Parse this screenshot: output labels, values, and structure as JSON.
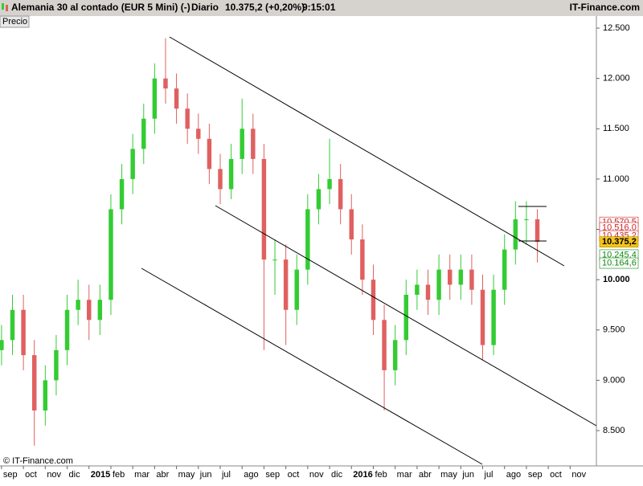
{
  "header": {
    "title": "Alemania 30 al contado (EUR 5 Mini) (-)",
    "period": "Diario",
    "price": "10.375,2 (+0,20%)",
    "time": "9:15:01",
    "brand": "IT-Finance.com"
  },
  "panel_label": "Precio",
  "footer": "© IT-Finance.com",
  "chart_data": {
    "type": "candlestick",
    "x": [
      0,
      0.5,
      1,
      1.5,
      2,
      2.5,
      3,
      3.5,
      4,
      4.5,
      5,
      5.5,
      6,
      6.5,
      7,
      7.5,
      8,
      8.5,
      9,
      9.5,
      10,
      10.5,
      11,
      11.5,
      12,
      12.5,
      13,
      13.5,
      14,
      14.5,
      15,
      15.5,
      16,
      16.5,
      17,
      17.5,
      18,
      18.5,
      19,
      19.5,
      20,
      20.5,
      21,
      21.5,
      22,
      22.5,
      23,
      23.5,
      24,
      24.5
    ],
    "open": [
      9300,
      9400,
      9700,
      9250,
      8700,
      9000,
      9300,
      9700,
      9800,
      9600,
      9800,
      10700,
      11000,
      11300,
      11600,
      12000,
      11900,
      11700,
      11500,
      11400,
      11100,
      10900,
      11200,
      11500,
      11200,
      10200,
      10200,
      9700,
      10100,
      10700,
      10900,
      11000,
      10700,
      10400,
      10000,
      9600,
      9100,
      9400,
      9850,
      9950,
      9800,
      10100,
      9950,
      10100,
      9900,
      9350,
      9900,
      10300,
      10600,
      10600
    ],
    "high": [
      9550,
      9850,
      9850,
      9400,
      9150,
      9450,
      9850,
      10000,
      9950,
      9950,
      10850,
      11150,
      11450,
      11750,
      12150,
      12400,
      12050,
      11850,
      11650,
      11550,
      11250,
      11350,
      11800,
      11650,
      11350,
      10400,
      10350,
      10250,
      10850,
      11050,
      11400,
      11150,
      10850,
      10550,
      10150,
      9750,
      9550,
      10000,
      10100,
      10100,
      10250,
      10250,
      10250,
      10250,
      10050,
      10050,
      10450,
      10780,
      10780,
      10700
    ],
    "low": [
      9150,
      9250,
      9100,
      8350,
      8550,
      8850,
      9150,
      9550,
      9400,
      9450,
      9650,
      10550,
      10850,
      11150,
      11450,
      11750,
      11550,
      11350,
      11250,
      10950,
      10750,
      10800,
      11050,
      11050,
      9300,
      9850,
      9350,
      9550,
      9950,
      10550,
      10750,
      10550,
      10250,
      9850,
      9450,
      8700,
      8950,
      9250,
      9700,
      9650,
      9650,
      9800,
      9800,
      9750,
      9200,
      9250,
      9750,
      10150,
      10350,
      10170
    ],
    "close": [
      9400,
      9700,
      9250,
      8700,
      9000,
      9300,
      9700,
      9800,
      9600,
      9800,
      10700,
      11000,
      11300,
      11600,
      12000,
      11900,
      11700,
      11500,
      11400,
      11100,
      10900,
      11200,
      11500,
      11200,
      10200,
      10200,
      9700,
      10100,
      10700,
      10900,
      11000,
      10700,
      10400,
      10000,
      9600,
      9100,
      9400,
      9850,
      9950,
      9800,
      10100,
      9950,
      10100,
      9900,
      9350,
      9900,
      10300,
      10600,
      10600,
      10375
    ],
    "up_color": "#33cc33",
    "down_color": "#e06060",
    "xlim": [
      -0.07,
      27.2
    ],
    "xticks": [
      {
        "value": 0,
        "label": "sep"
      },
      {
        "value": 1,
        "label": "oct"
      },
      {
        "value": 2,
        "label": "nov"
      },
      {
        "value": 3,
        "label": "dic"
      },
      {
        "value": 4,
        "label": "2015"
      },
      {
        "value": 5,
        "label": "feb"
      },
      {
        "value": 6,
        "label": "mar"
      },
      {
        "value": 7,
        "label": "abr"
      },
      {
        "value": 8,
        "label": "may"
      },
      {
        "value": 9,
        "label": "jun"
      },
      {
        "value": 10,
        "label": "jul"
      },
      {
        "value": 11,
        "label": "ago"
      },
      {
        "value": 12,
        "label": "sep"
      },
      {
        "value": 13,
        "label": "oct"
      },
      {
        "value": 14,
        "label": "nov"
      },
      {
        "value": 15,
        "label": "dic"
      },
      {
        "value": 16,
        "label": "2016"
      },
      {
        "value": 17,
        "label": "feb"
      },
      {
        "value": 18,
        "label": "mar"
      },
      {
        "value": 19,
        "label": "abr"
      },
      {
        "value": 20,
        "label": "may"
      },
      {
        "value": 21,
        "label": "jun"
      },
      {
        "value": 22,
        "label": "jul"
      },
      {
        "value": 23,
        "label": "ago"
      },
      {
        "value": 24,
        "label": "sep"
      },
      {
        "value": 25,
        "label": "oct"
      },
      {
        "value": 26,
        "label": "nov"
      }
    ],
    "ylim": [
      8149,
      12620
    ],
    "yticks": [
      {
        "value": 8500,
        "label": "8.500"
      },
      {
        "value": 9000,
        "label": "9.000"
      },
      {
        "value": 9500,
        "label": "9.500"
      },
      {
        "value": 10000,
        "label": "10.000"
      },
      {
        "value": 10500,
        "label": "10.500"
      },
      {
        "value": 11000,
        "label": "11.000"
      },
      {
        "value": 11500,
        "label": "11.500"
      },
      {
        "value": 12000,
        "label": "12.000"
      },
      {
        "value": 12500,
        "label": "12.500"
      }
    ],
    "price_labels": [
      {
        "value": 10570.5,
        "label": "10.570,5",
        "color": "#cc2222",
        "background": "#ffffff"
      },
      {
        "value": 10516,
        "label": "10.516,0",
        "color": "#cc2222",
        "background": "#ffffff"
      },
      {
        "value": 10435.2,
        "label": "10.435,2",
        "color": "#cc2222",
        "background": "#ffffff"
      },
      {
        "value": 10245.4,
        "label": "10.245,4",
        "color": "#118811",
        "background": "#ffffff"
      },
      {
        "value": 10164.6,
        "label": "10.164,6",
        "color": "#118811",
        "background": "#ffffff"
      },
      {
        "value": 10375.2,
        "label": "10.375,2",
        "color": "#000000",
        "background": "#f5c518"
      }
    ]
  }
}
